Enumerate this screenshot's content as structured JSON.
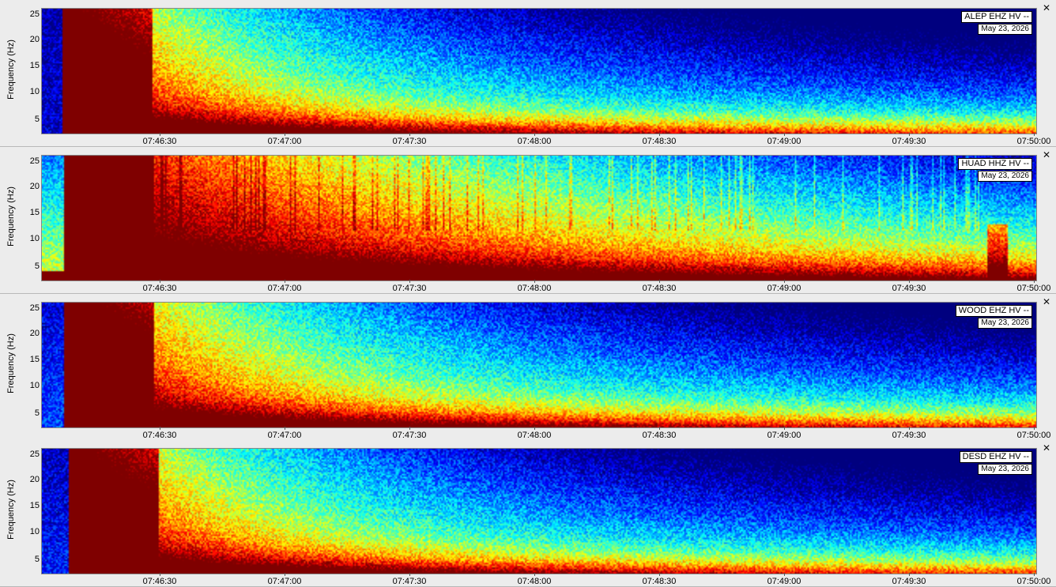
{
  "y_axis_label": "Frequency (Hz)",
  "y_ticks": [
    "5",
    "10",
    "15",
    "20",
    "25"
  ],
  "x_ticks": [
    "07:46:30",
    "07:47:00",
    "07:47:30",
    "07:48:00",
    "07:48:30",
    "07:49:00",
    "07:49:30",
    "07:50:00"
  ],
  "panels": [
    {
      "station": "ALEP EHZ HV --",
      "date": "May 23, 2026",
      "close": "✕"
    },
    {
      "station": "HUAD HHZ HV --",
      "date": "May 23, 2026",
      "close": "✕"
    },
    {
      "station": "WOOD EHZ HV --",
      "date": "May 23, 2026",
      "close": "✕"
    },
    {
      "station": "DESD EHZ HV --",
      "date": "May 23, 2026",
      "close": "✕"
    }
  ],
  "colormap": "jet"
}
